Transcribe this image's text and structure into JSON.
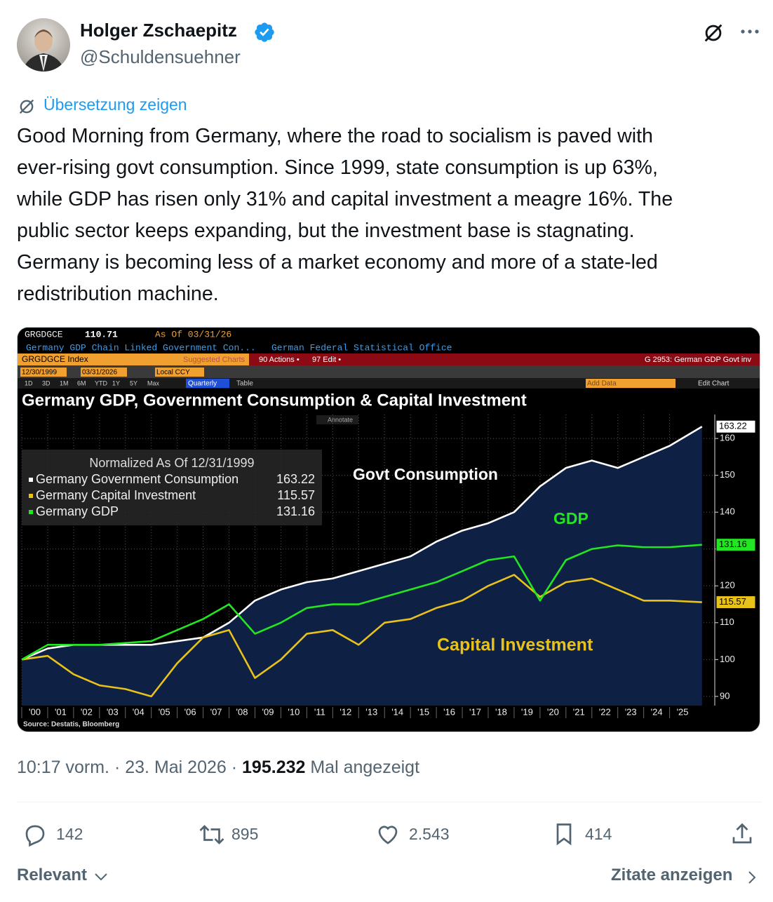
{
  "post": {
    "author": {
      "name": "Holger Zschaepitz",
      "handle": "@Schuldensuehner"
    },
    "translate": "Übersetzung zeigen",
    "text_lines": [
      "Good Morning from Germany, where the road to socialism is paved with",
      "ever-rising govt consumption. Since 1999, state consumption is up 63%,",
      "while GDP has risen only 31% and capital investment a meagre 16%. The",
      "public sector keeps expanding, but the investment base is stagnating.",
      "Germany is becoming less of a market economy and more of a state-led",
      "redistribution machine."
    ],
    "meta": {
      "time": "10:17 vorm.",
      "separator": "·",
      "date": "23. Mai 2026",
      "views": "195.232",
      "views_label": "Mal angezeigt"
    },
    "actions": {
      "replies": "142",
      "reposts": "895",
      "likes": "2.543",
      "bookmarks": "414"
    },
    "footer": {
      "sort": "Relevant",
      "quotes": "Zitate anzeigen"
    }
  },
  "terminal": {
    "ticker": "GRGDGCE",
    "last_price": "110.71",
    "as_of": "As Of 03/31/26",
    "description": "Germany GDP Chain Linked Government Con...",
    "source_name": "German Federal Statistical Office",
    "security": "GRGDGCE Index",
    "suggested": "Suggested Charts",
    "actions": "90 Actions •",
    "edit": "97 Edit •",
    "function": "G 2953: German GDP Govt inv",
    "start_date": "12/30/1999",
    "end_date": "03/31/2026",
    "currency": "Local CCY",
    "ranges": [
      "1D",
      "3D",
      "1M",
      "6M",
      "YTD",
      "1Y",
      "5Y",
      "Max"
    ],
    "periodicity": "Quarterly",
    "table": "Table",
    "add_data": "Add Data",
    "edit_chart": "Edit Chart",
    "annotate": "Annotate"
  },
  "chart_data": {
    "type": "line",
    "title": "Germany GDP, Government Consumption & Capital Investment",
    "legend_title": "Normalized As Of 12/31/1999",
    "source": "Source: Destatis, Bloomberg",
    "annotations": [
      "Govt Consumption",
      "GDP",
      "Capital Investment"
    ],
    "x": [
      2000,
      2001,
      2002,
      2003,
      2004,
      2005,
      2006,
      2007,
      2008,
      2009,
      2010,
      2011,
      2012,
      2013,
      2014,
      2015,
      2016,
      2017,
      2018,
      2019,
      2020,
      2021,
      2022,
      2023,
      2024,
      2025,
      2026.25
    ],
    "series": [
      {
        "name": "Germany Government Consumption",
        "color": "#ffffff",
        "values": [
          100,
          103,
          104,
          104,
          104,
          104,
          105,
          106,
          110,
          116,
          119,
          121,
          122,
          124,
          126,
          128,
          132,
          135,
          137,
          140,
          147,
          152,
          154,
          152,
          155,
          158,
          163.22
        ]
      },
      {
        "name": "Germany Capital Investment",
        "color": "#e8c21a",
        "values": [
          100,
          101,
          96,
          93,
          92,
          90,
          99,
          106,
          108,
          95,
          100,
          107,
          108,
          104,
          110,
          111,
          114,
          116,
          120,
          123,
          117,
          121,
          122,
          119,
          116,
          116,
          115.57
        ]
      },
      {
        "name": "Germany GDP",
        "color": "#22e622",
        "values": [
          100,
          104,
          104,
          104,
          104.5,
          105,
          108,
          111,
          115,
          107,
          110,
          114,
          115,
          115,
          117,
          119,
          121,
          124,
          127,
          128,
          116,
          127,
          130,
          131,
          130.5,
          130.5,
          131.16
        ]
      }
    ],
    "xlim": [
      2000,
      2026.5
    ],
    "ylim": [
      87.5,
      166.5
    ],
    "yticks": [
      90,
      100,
      110,
      120,
      130,
      140,
      150,
      160
    ],
    "xticks": [
      {
        "value": 2000,
        "label": "'00"
      },
      {
        "value": 2001,
        "label": "'01"
      },
      {
        "value": 2002,
        "label": "'02"
      },
      {
        "value": 2003,
        "label": "'03"
      },
      {
        "value": 2004,
        "label": "'04"
      },
      {
        "value": 2005,
        "label": "'05"
      },
      {
        "value": 2006,
        "label": "'06"
      },
      {
        "value": 2007,
        "label": "'07"
      },
      {
        "value": 2008,
        "label": "'08"
      },
      {
        "value": 2009,
        "label": "'09"
      },
      {
        "value": 2010,
        "label": "'10"
      },
      {
        "value": 2011,
        "label": "'11"
      },
      {
        "value": 2012,
        "label": "'12"
      },
      {
        "value": 2013,
        "label": "'13"
      },
      {
        "value": 2014,
        "label": "'14"
      },
      {
        "value": 2015,
        "label": "'15"
      },
      {
        "value": 2016,
        "label": "'16"
      },
      {
        "value": 2017,
        "label": "'17"
      },
      {
        "value": 2018,
        "label": "'18"
      },
      {
        "value": 2019,
        "label": "'19"
      },
      {
        "value": 2020,
        "label": "'20"
      },
      {
        "value": 2021,
        "label": "'21"
      },
      {
        "value": 2022,
        "label": "'22"
      },
      {
        "value": 2023,
        "label": "'23"
      },
      {
        "value": 2024,
        "label": "'24"
      },
      {
        "value": 2025,
        "label": "'25"
      }
    ],
    "grid": true,
    "area_under": 0
  }
}
